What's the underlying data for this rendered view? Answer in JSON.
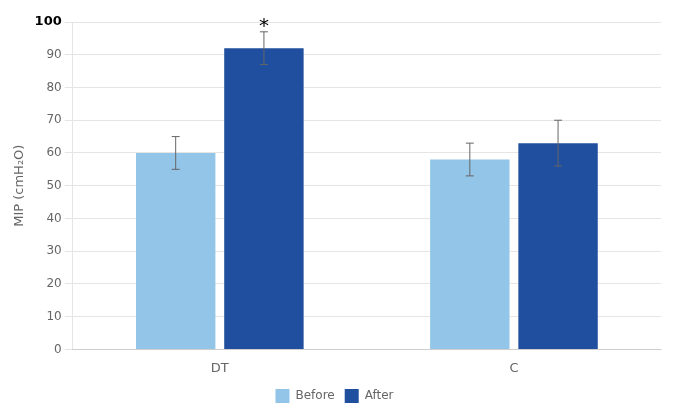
{
  "chart_data": {
    "type": "bar",
    "categories": [
      "DT",
      "C"
    ],
    "series": [
      {
        "name": "Before",
        "color": "#92C5E8",
        "values": [
          60,
          58
        ],
        "errors": [
          5,
          5
        ]
      },
      {
        "name": "After",
        "color": "#1F4F9E",
        "values": [
          92,
          63
        ],
        "errors": [
          5,
          7
        ]
      }
    ],
    "y_label": "MIP (cmH₂O)",
    "ylim": [
      0,
      100
    ],
    "yticks": [
      0,
      10,
      20,
      30,
      40,
      50,
      60,
      70,
      80,
      90,
      100
    ],
    "grid": "y",
    "legend": "bottom",
    "annotations": [
      {
        "text": "*",
        "category": "DT",
        "series": "After"
      }
    ]
  }
}
